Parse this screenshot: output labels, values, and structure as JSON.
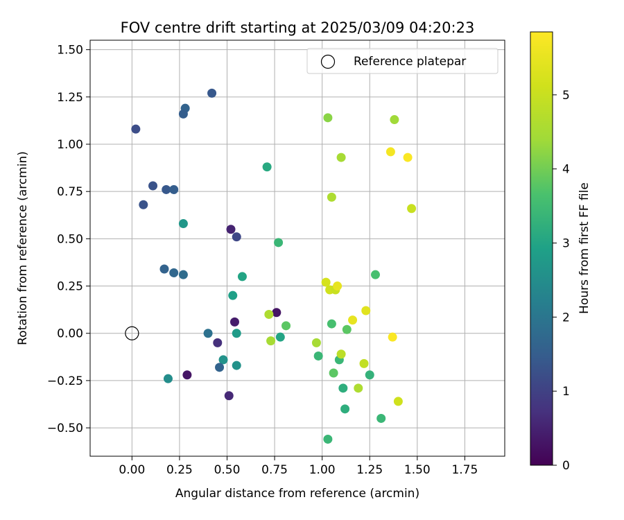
{
  "chart_data": {
    "type": "scatter",
    "title": "FOV centre drift starting at 2025/03/09 04:20:23",
    "xlabel": "Angular distance from reference (arcmin)",
    "ylabel": "Rotation from reference (arcmin)",
    "xlim": [
      -0.22,
      1.96
    ],
    "ylim": [
      -0.65,
      1.55
    ],
    "xticks": [
      0.0,
      0.25,
      0.5,
      0.75,
      1.0,
      1.25,
      1.5,
      1.75
    ],
    "xtick_labels": [
      "0.00",
      "0.25",
      "0.50",
      "0.75",
      "1.00",
      "1.25",
      "1.50",
      "1.75"
    ],
    "yticks": [
      -0.5,
      -0.25,
      0.0,
      0.25,
      0.5,
      0.75,
      1.0,
      1.25,
      1.5
    ],
    "ytick_labels": [
      "−0.50",
      "−0.25",
      "0.00",
      "0.25",
      "0.50",
      "0.75",
      "1.00",
      "1.25",
      "1.50"
    ],
    "grid": true,
    "colormap": "viridis",
    "colorbar": {
      "label": "Hours from first FF file",
      "range": [
        0,
        5.85
      ],
      "ticks": [
        0,
        1,
        2,
        3,
        4,
        5
      ],
      "tick_labels": [
        "0",
        "1",
        "2",
        "3",
        "4",
        "5"
      ]
    },
    "legend": {
      "position": "top-right",
      "entries": [
        "Reference platepar"
      ]
    },
    "reference": {
      "x": 0.0,
      "y": 0.0,
      "name": "Reference platepar"
    },
    "points": [
      {
        "x": 0.02,
        "y": 1.08,
        "c": 1.2
      },
      {
        "x": 0.42,
        "y": 1.27,
        "c": 1.4
      },
      {
        "x": 0.28,
        "y": 1.19,
        "c": 1.6
      },
      {
        "x": 0.27,
        "y": 1.16,
        "c": 1.5
      },
      {
        "x": 0.11,
        "y": 0.78,
        "c": 1.3
      },
      {
        "x": 0.18,
        "y": 0.76,
        "c": 1.4
      },
      {
        "x": 0.22,
        "y": 0.76,
        "c": 1.5
      },
      {
        "x": 0.06,
        "y": 0.68,
        "c": 1.3
      },
      {
        "x": 0.27,
        "y": 0.58,
        "c": 2.7
      },
      {
        "x": 0.52,
        "y": 0.55,
        "c": 0.5
      },
      {
        "x": 0.55,
        "y": 0.51,
        "c": 1.1
      },
      {
        "x": 0.71,
        "y": 0.88,
        "c": 3.1
      },
      {
        "x": 0.77,
        "y": 0.48,
        "c": 3.4
      },
      {
        "x": 0.17,
        "y": 0.34,
        "c": 1.6
      },
      {
        "x": 0.22,
        "y": 0.32,
        "c": 1.7
      },
      {
        "x": 0.27,
        "y": 0.31,
        "c": 1.8
      },
      {
        "x": 0.58,
        "y": 0.3,
        "c": 3.0
      },
      {
        "x": 0.53,
        "y": 0.2,
        "c": 2.9
      },
      {
        "x": 0.76,
        "y": 0.11,
        "c": 0.3
      },
      {
        "x": 0.54,
        "y": 0.06,
        "c": 0.4
      },
      {
        "x": 0.4,
        "y": 0.0,
        "c": 1.9
      },
      {
        "x": 0.55,
        "y": 0.0,
        "c": 2.8
      },
      {
        "x": 0.45,
        "y": -0.05,
        "c": 0.7
      },
      {
        "x": 0.48,
        "y": -0.14,
        "c": 2.6
      },
      {
        "x": 0.46,
        "y": -0.18,
        "c": 1.6
      },
      {
        "x": 0.55,
        "y": -0.17,
        "c": 2.6
      },
      {
        "x": 0.19,
        "y": -0.24,
        "c": 2.5
      },
      {
        "x": 0.29,
        "y": -0.22,
        "c": 0.3
      },
      {
        "x": 0.51,
        "y": -0.33,
        "c": 0.6
      },
      {
        "x": 0.72,
        "y": 0.1,
        "c": 4.6
      },
      {
        "x": 0.73,
        "y": -0.04,
        "c": 4.5
      },
      {
        "x": 0.78,
        "y": -0.02,
        "c": 3.0
      },
      {
        "x": 0.81,
        "y": 0.04,
        "c": 3.8
      },
      {
        "x": 1.03,
        "y": 1.14,
        "c": 4.2
      },
      {
        "x": 1.1,
        "y": 0.93,
        "c": 4.5
      },
      {
        "x": 1.05,
        "y": 0.72,
        "c": 4.6
      },
      {
        "x": 1.38,
        "y": 1.13,
        "c": 4.4
      },
      {
        "x": 1.36,
        "y": 0.96,
        "c": 5.7
      },
      {
        "x": 1.45,
        "y": 0.93,
        "c": 5.8
      },
      {
        "x": 1.47,
        "y": 0.66,
        "c": 5.0
      },
      {
        "x": 1.02,
        "y": 0.27,
        "c": 5.2
      },
      {
        "x": 1.04,
        "y": 0.23,
        "c": 5.1
      },
      {
        "x": 1.07,
        "y": 0.23,
        "c": 5.0
      },
      {
        "x": 1.08,
        "y": 0.25,
        "c": 5.5
      },
      {
        "x": 1.28,
        "y": 0.31,
        "c": 3.6
      },
      {
        "x": 1.23,
        "y": 0.12,
        "c": 5.4
      },
      {
        "x": 1.16,
        "y": 0.07,
        "c": 5.5
      },
      {
        "x": 1.05,
        "y": 0.05,
        "c": 3.6
      },
      {
        "x": 1.13,
        "y": 0.02,
        "c": 3.8
      },
      {
        "x": 1.37,
        "y": -0.02,
        "c": 5.8
      },
      {
        "x": 0.97,
        "y": -0.05,
        "c": 4.5
      },
      {
        "x": 0.98,
        "y": -0.12,
        "c": 3.4
      },
      {
        "x": 1.09,
        "y": -0.14,
        "c": 3.4
      },
      {
        "x": 1.1,
        "y": -0.11,
        "c": 4.8
      },
      {
        "x": 1.06,
        "y": -0.21,
        "c": 3.8
      },
      {
        "x": 1.22,
        "y": -0.16,
        "c": 4.9
      },
      {
        "x": 1.25,
        "y": -0.22,
        "c": 3.3
      },
      {
        "x": 1.11,
        "y": -0.29,
        "c": 3.2
      },
      {
        "x": 1.19,
        "y": -0.29,
        "c": 4.6
      },
      {
        "x": 1.4,
        "y": -0.36,
        "c": 5.1
      },
      {
        "x": 1.12,
        "y": -0.4,
        "c": 3.2
      },
      {
        "x": 1.31,
        "y": -0.45,
        "c": 3.4
      },
      {
        "x": 1.03,
        "y": -0.56,
        "c": 3.4
      }
    ]
  }
}
